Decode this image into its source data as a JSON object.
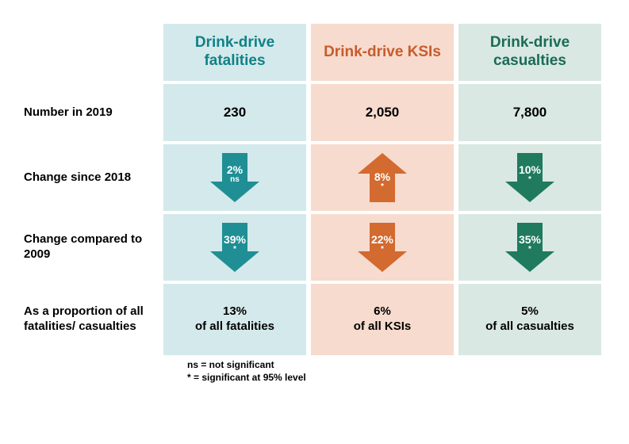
{
  "rowLabels": {
    "number": "Number in 2019",
    "change2018": "Change since 2018",
    "change2009": "Change compared to 2009",
    "proportion": "As a proportion of all fatalities/ casualties"
  },
  "columns": [
    {
      "key": "fatalities",
      "header": "Drink-drive fatalities",
      "headerColor": "#0f8287",
      "bgColor": "#d4e9eb",
      "arrowColor": "#1f8f95",
      "number": "230",
      "change2018": {
        "dir": "down",
        "value": "2%",
        "sig": "ns"
      },
      "change2009": {
        "dir": "down",
        "value": "39%",
        "sig": "*"
      },
      "proportion": {
        "pct": "13%",
        "of": "of all fatalities"
      }
    },
    {
      "key": "ksis",
      "header": "Drink-drive KSIs",
      "headerColor": "#c75c2c",
      "bgColor": "#f7dbce",
      "arrowColor": "#d36a2f",
      "number": "2,050",
      "change2018": {
        "dir": "up",
        "value": "8%",
        "sig": "*"
      },
      "change2009": {
        "dir": "down",
        "value": "22%",
        "sig": "*"
      },
      "proportion": {
        "pct": "6%",
        "of": "of all KSIs"
      }
    },
    {
      "key": "casualties",
      "header": "Drink-drive casualties",
      "headerColor": "#1a6b56",
      "bgColor": "#d9e8e2",
      "arrowColor": "#1f7a5e",
      "number": "7,800",
      "change2018": {
        "dir": "down",
        "value": "10%",
        "sig": "*"
      },
      "change2009": {
        "dir": "down",
        "value": "35%",
        "sig": "*"
      },
      "proportion": {
        "pct": "5%",
        "of": "of all casualties"
      }
    }
  ],
  "footnote": {
    "line1": "ns = not significant",
    "line2": "* = significant at 95% level"
  }
}
